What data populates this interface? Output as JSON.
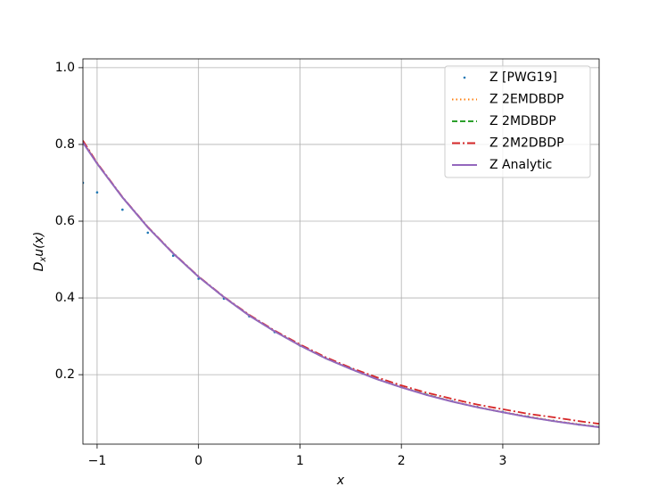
{
  "chart_data": {
    "type": "line",
    "xlabel": "x",
    "ylabel_parts": [
      "D",
      "x",
      "u(x)"
    ],
    "x": [
      -1.14,
      -1.0,
      -0.75,
      -0.5,
      -0.25,
      0,
      0.25,
      0.5,
      0.75,
      1,
      1.25,
      1.5,
      1.75,
      2,
      2.25,
      2.5,
      2.75,
      3,
      3.25,
      3.5,
      3.75,
      3.95
    ],
    "series": [
      {
        "name": "Z [PWG19]",
        "color": "#1f77b4",
        "style": "dots",
        "values": [
          0.7,
          0.675,
          0.63,
          0.57,
          0.51,
          0.45,
          0.398,
          0.352,
          0.311,
          0.276,
          0.244,
          0.216,
          0.192,
          0.168,
          0.148,
          0.131,
          0.116,
          0.103,
          0.091,
          0.08,
          0.07,
          0.064
        ]
      },
      {
        "name": "Z 2EMDBDP",
        "color": "#ff7f0e",
        "style": "dotted",
        "values": [
          0.808,
          0.751,
          0.662,
          0.585,
          0.516,
          0.456,
          0.402,
          0.355,
          0.313,
          0.277,
          0.244,
          0.215,
          0.19,
          0.168,
          0.148,
          0.131,
          0.116,
          0.103,
          0.091,
          0.08,
          0.071,
          0.064
        ]
      },
      {
        "name": "Z 2MDBDP",
        "color": "#2ca02c",
        "style": "dashed",
        "values": [
          0.806,
          0.75,
          0.662,
          0.584,
          0.516,
          0.455,
          0.402,
          0.354,
          0.313,
          0.276,
          0.243,
          0.215,
          0.189,
          0.167,
          0.148,
          0.13,
          0.115,
          0.102,
          0.09,
          0.079,
          0.07,
          0.064
        ]
      },
      {
        "name": "Z 2M2DBDP",
        "color": "#d62728",
        "style": "dashdot",
        "values": [
          0.81,
          0.752,
          0.663,
          0.585,
          0.517,
          0.456,
          0.403,
          0.356,
          0.315,
          0.279,
          0.246,
          0.218,
          0.194,
          0.172,
          0.153,
          0.137,
          0.122,
          0.11,
          0.098,
          0.089,
          0.079,
          0.072
        ]
      },
      {
        "name": "Z Analytic",
        "color": "#9467bd",
        "style": "solid",
        "values": [
          0.805,
          0.75,
          0.662,
          0.584,
          0.516,
          0.455,
          0.402,
          0.354,
          0.313,
          0.276,
          0.243,
          0.215,
          0.189,
          0.167,
          0.147,
          0.13,
          0.115,
          0.102,
          0.0895,
          0.079,
          0.0697,
          0.0631
        ]
      }
    ],
    "xlim": [
      -1.14,
      3.95
    ],
    "ylim": [
      0.019,
      1.023
    ],
    "xticks": [
      {
        "value": -1,
        "label": "−1"
      },
      0,
      1,
      2,
      3
    ],
    "yticks": [
      0.2,
      0.4,
      0.6,
      0.8,
      {
        "value": 1.0,
        "label": "1.0"
      }
    ],
    "grid": true,
    "legend": "upper-right"
  }
}
